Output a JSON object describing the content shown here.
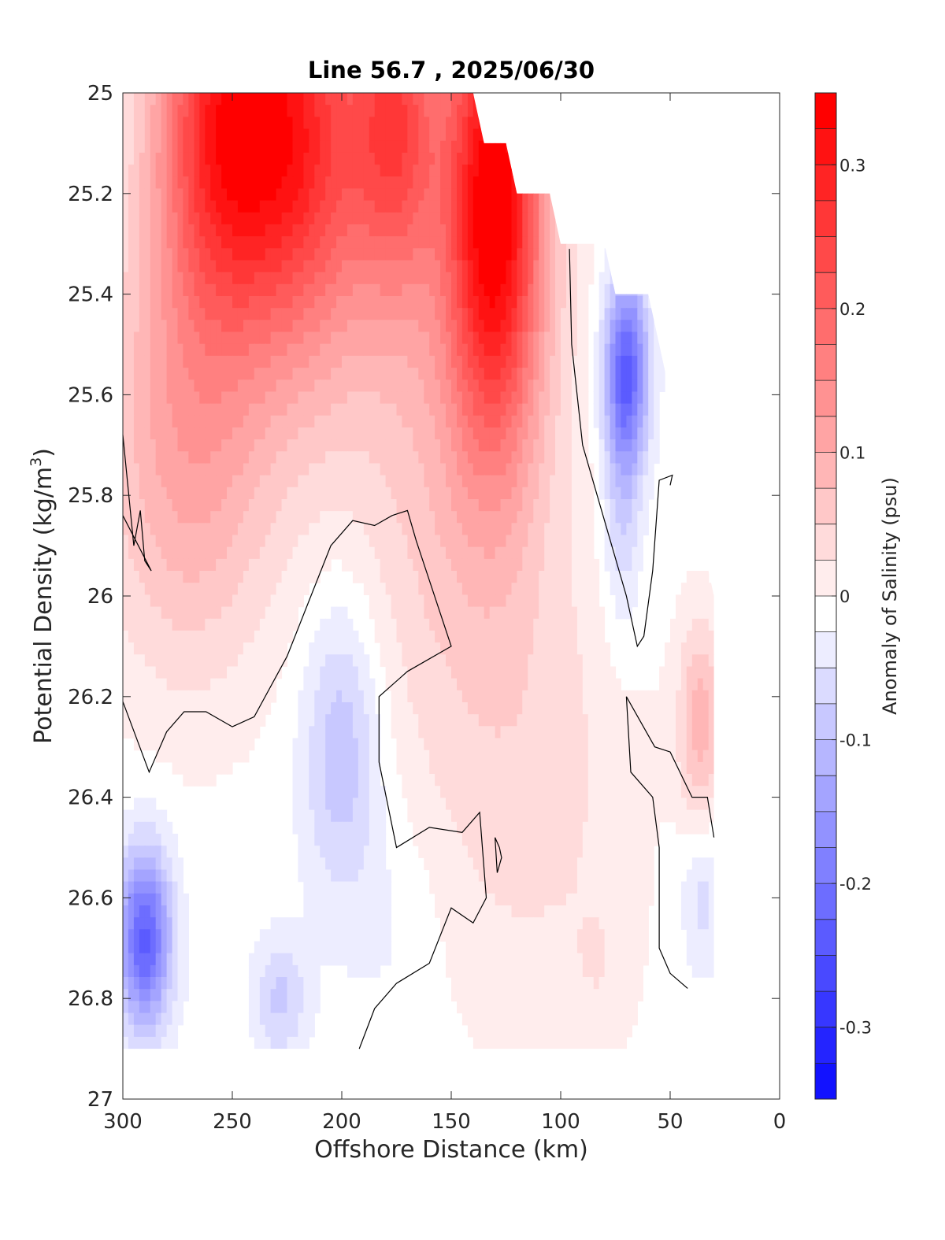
{
  "chart_data": {
    "type": "heatmap",
    "subtype": "filled-contour section",
    "title": "Line 56.7 , 2025/06/30",
    "xlabel": "Offshore Distance (km)",
    "ylabel_main": "Potential Density (kg/m",
    "ylabel_sup": "3",
    "ylabel_close": ")",
    "colorbar_label": "Anomaly of Salinity (psu)",
    "x_axis": {
      "min": 0,
      "max": 300,
      "reversed": true,
      "ticks": [
        300,
        250,
        200,
        150,
        100,
        50,
        0
      ],
      "tick_labels": [
        "300",
        "250",
        "200",
        "150",
        "100",
        "50",
        "0"
      ]
    },
    "y_axis": {
      "min": 25,
      "max": 27,
      "reversed": true,
      "ticks": [
        25,
        25.2,
        25.4,
        25.6,
        25.8,
        26,
        26.2,
        26.4,
        26.6,
        26.8,
        27
      ],
      "tick_labels": [
        "25",
        "25.2",
        "25.4",
        "25.6",
        "25.8",
        "26",
        "26.2",
        "26.4",
        "26.6",
        "26.8",
        "27"
      ]
    },
    "colorbar": {
      "min": -0.35,
      "max": 0.35,
      "step": 0.025,
      "ticks": [
        0.3,
        0.2,
        0.1,
        0,
        -0.1,
        -0.2,
        -0.3
      ],
      "tick_labels": [
        "0.3",
        "0.2",
        "0.1",
        "0",
        "-0.1",
        "-0.2",
        "-0.3"
      ],
      "colormap": "blue-white-red",
      "low_color": "#0000ff",
      "mid_color": "#ffffff",
      "high_color": "#ff0000"
    },
    "grid": false,
    "zero_contour_line": true,
    "contour_line_color": "#000000",
    "data_extent": {
      "x_min": 30,
      "x_max": 300,
      "y_max": 26.9,
      "top_boundary": [
        [
          300,
          25
        ],
        [
          140,
          25
        ],
        [
          135,
          25.1
        ],
        [
          125,
          25.1
        ],
        [
          120,
          25.2
        ],
        [
          105,
          25.2
        ],
        [
          100,
          25.3
        ],
        [
          80,
          25.3
        ],
        [
          75,
          25.4
        ],
        [
          60,
          25.4
        ],
        [
          50,
          25.6
        ],
        [
          45,
          25.7
        ],
        [
          40,
          25.8
        ],
        [
          35,
          25.9
        ],
        [
          30,
          26.0
        ]
      ]
    },
    "x": [
      300,
      290,
      280,
      270,
      260,
      250,
      240,
      230,
      220,
      210,
      200,
      190,
      180,
      170,
      160,
      150,
      140,
      130,
      120,
      110,
      100,
      90,
      80,
      70,
      60,
      50,
      40,
      30
    ],
    "y": [
      25.0,
      25.1,
      25.2,
      25.3,
      25.4,
      25.5,
      25.6,
      25.7,
      25.8,
      25.9,
      26.0,
      26.1,
      26.2,
      26.3,
      26.4,
      26.5,
      26.6,
      26.7,
      26.8,
      26.9
    ],
    "features": [
      {
        "x": 253,
        "y": 25.05,
        "sx": 32,
        "sy": 0.42,
        "amp": 0.3
      },
      {
        "x": 215,
        "y": 25.1,
        "sx": 30,
        "sy": 0.45,
        "amp": 0.22
      },
      {
        "x": 175,
        "y": 25.05,
        "sx": 20,
        "sy": 0.35,
        "amp": 0.2
      },
      {
        "x": 130,
        "y": 25.2,
        "sx": 22,
        "sy": 0.5,
        "amp": 0.33
      },
      {
        "x": 270,
        "y": 25.7,
        "sx": 40,
        "sy": 0.45,
        "amp": 0.12
      },
      {
        "x": 150,
        "y": 25.6,
        "sx": 50,
        "sy": 0.7,
        "amp": 0.08
      },
      {
        "x": 110,
        "y": 26.4,
        "sx": 50,
        "sy": 0.5,
        "amp": 0.04
      },
      {
        "x": 82,
        "y": 26.75,
        "sx": 14,
        "sy": 0.15,
        "amp": 0.02
      },
      {
        "x": 36,
        "y": 26.25,
        "sx": 10,
        "sy": 0.2,
        "amp": 0.1
      },
      {
        "x": 70,
        "y": 25.55,
        "sx": 10,
        "sy": 0.2,
        "amp": -0.22
      },
      {
        "x": 72,
        "y": 25.85,
        "sx": 9,
        "sy": 0.25,
        "amp": -0.06
      },
      {
        "x": 290,
        "y": 26.68,
        "sx": 12,
        "sy": 0.18,
        "amp": -0.22
      },
      {
        "x": 200,
        "y": 26.3,
        "sx": 18,
        "sy": 0.3,
        "amp": -0.09
      },
      {
        "x": 228,
        "y": 26.8,
        "sx": 12,
        "sy": 0.12,
        "amp": -0.07
      },
      {
        "x": 175,
        "y": 26.65,
        "sx": 22,
        "sy": 0.25,
        "amp": -0.02
      },
      {
        "x": 35,
        "y": 26.6,
        "sx": 10,
        "sy": 0.15,
        "amp": -0.05
      }
    ],
    "zero_contours": [
      [
        [
          300,
          25.68
        ],
        [
          295,
          25.9
        ],
        [
          292,
          25.83
        ],
        [
          290,
          25.93
        ],
        [
          287,
          25.95
        ],
        [
          300,
          25.84
        ]
      ],
      [
        [
          300,
          26.21
        ],
        [
          288,
          26.35
        ],
        [
          280,
          26.27
        ],
        [
          272,
          26.23
        ],
        [
          262,
          26.23
        ],
        [
          250,
          26.26
        ],
        [
          240,
          26.24
        ],
        [
          225,
          26.12
        ],
        [
          205,
          25.9
        ],
        [
          195,
          25.85
        ],
        [
          185,
          25.86
        ],
        [
          177,
          25.84
        ],
        [
          170,
          25.83
        ],
        [
          166,
          25.89
        ],
        [
          150,
          26.1
        ],
        [
          170,
          26.15
        ],
        [
          183,
          26.2
        ],
        [
          183,
          26.33
        ],
        [
          175,
          26.5
        ],
        [
          160,
          26.46
        ],
        [
          145,
          26.47
        ],
        [
          137,
          26.43
        ],
        [
          134,
          26.6
        ],
        [
          140,
          26.65
        ],
        [
          150,
          26.62
        ],
        [
          160,
          26.73
        ],
        [
          175,
          26.77
        ],
        [
          185,
          26.82
        ],
        [
          192,
          26.9
        ]
      ],
      [
        [
          130,
          26.48
        ],
        [
          128,
          26.5
        ],
        [
          127,
          26.52
        ],
        [
          129,
          26.55
        ],
        [
          130,
          26.48
        ]
      ],
      [
        [
          96,
          25.31
        ],
        [
          95,
          25.5
        ],
        [
          90,
          25.7
        ],
        [
          80,
          25.85
        ],
        [
          70,
          26.0
        ],
        [
          65,
          26.1
        ],
        [
          62,
          26.08
        ],
        [
          58,
          25.95
        ],
        [
          55,
          25.77
        ],
        [
          49,
          25.76
        ],
        [
          50,
          25.78
        ]
      ],
      [
        [
          70,
          26.2
        ],
        [
          57,
          26.3
        ],
        [
          50,
          26.31
        ],
        [
          40,
          26.4
        ],
        [
          33,
          26.4
        ],
        [
          30,
          26.48
        ]
      ],
      [
        [
          70,
          26.2
        ],
        [
          68,
          26.35
        ],
        [
          58,
          26.4
        ],
        [
          55,
          26.5
        ],
        [
          55,
          26.7
        ],
        [
          50,
          26.75
        ],
        [
          42,
          26.78
        ]
      ]
    ]
  }
}
